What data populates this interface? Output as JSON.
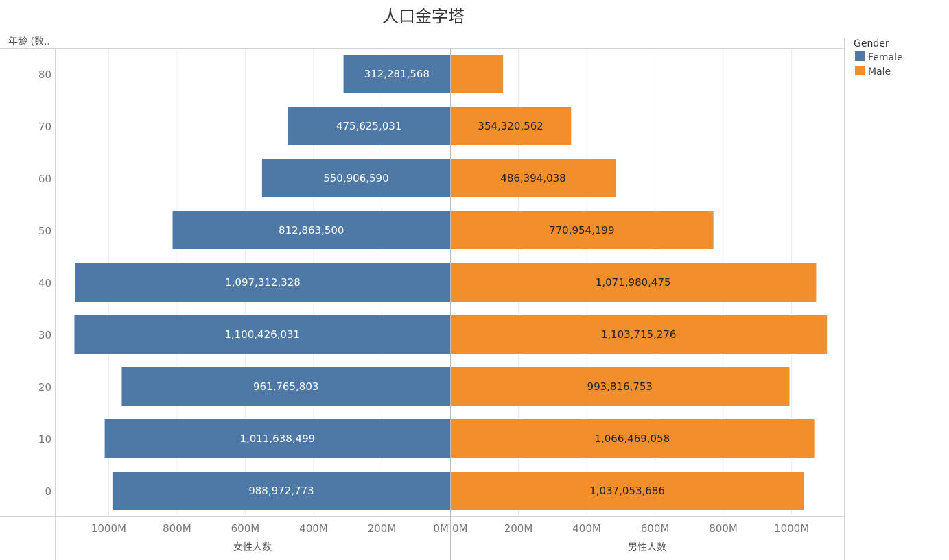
{
  "chart_data": {
    "type": "bar",
    "orientation": "horizontal",
    "layout": "population-pyramid",
    "title": "人口金字塔",
    "row_header": "年龄 (数..",
    "categories": [
      "80",
      "70",
      "60",
      "50",
      "40",
      "30",
      "20",
      "10",
      "0"
    ],
    "series": [
      {
        "name": "Female",
        "axis_title": "女性人数",
        "color": "#4e79a7",
        "values": [
          312281568,
          475625031,
          550906590,
          812863500,
          1097312328,
          1100426031,
          961765803,
          1011638499,
          988972773
        ],
        "labels": [
          "312,281,568",
          "475,625,031",
          "550,906,590",
          "812,863,500",
          "1,097,312,328",
          "1,100,426,031",
          "961,765,803",
          "1,011,638,499",
          "988,972,773"
        ]
      },
      {
        "name": "Male",
        "axis_title": "男性人数",
        "color": "#f28e2b",
        "values": [
          155000000,
          354320562,
          486394038,
          770954199,
          1071980475,
          1103715276,
          993816753,
          1066469058,
          1037053686
        ],
        "labels": [
          "",
          "354,320,562",
          "486,394,038",
          "770,954,199",
          "1,071,980,475",
          "1,103,715,276",
          "993,816,753",
          "1,066,469,058",
          "1,037,053,686"
        ]
      }
    ],
    "x_ticks_female": [
      "1000M",
      "800M",
      "600M",
      "400M",
      "200M",
      "0M"
    ],
    "x_ticks_male": [
      "0M",
      "200M",
      "400M",
      "600M",
      "800M",
      "1000M"
    ],
    "x_tick_values": [
      1000000000,
      800000000,
      600000000,
      400000000,
      200000000,
      0
    ],
    "x_tick_values_male": [
      0,
      200000000,
      400000000,
      600000000,
      800000000,
      1000000000
    ],
    "xlim": [
      0,
      1120000000
    ],
    "grid": true,
    "legend": {
      "title": "Gender",
      "position": "top-right",
      "items": [
        {
          "label": "Female",
          "color": "#4e79a7"
        },
        {
          "label": "Male",
          "color": "#f28e2b"
        }
      ]
    }
  }
}
